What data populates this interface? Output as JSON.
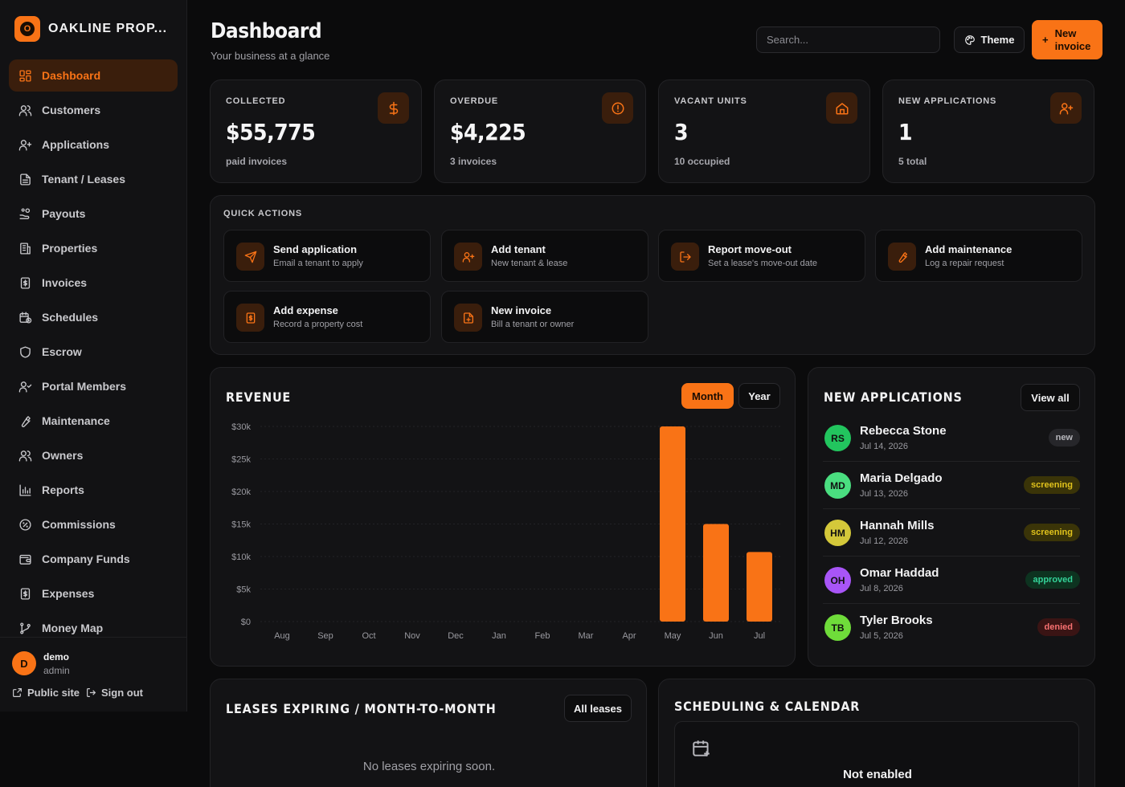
{
  "brand": {
    "logo_letter": "O",
    "name": "OAKLINE PROP..."
  },
  "nav": [
    {
      "label": "Dashboard",
      "icon": "grid-icon",
      "active": true
    },
    {
      "label": "Customers",
      "icon": "users-icon"
    },
    {
      "label": "Applications",
      "icon": "user-plus-icon"
    },
    {
      "label": "Tenant / Leases",
      "icon": "file-icon"
    },
    {
      "label": "Payouts",
      "icon": "hand-coins-icon"
    },
    {
      "label": "Properties",
      "icon": "building-icon"
    },
    {
      "label": "Invoices",
      "icon": "receipt-icon"
    },
    {
      "label": "Schedules",
      "icon": "calendar-clock-icon"
    },
    {
      "label": "Escrow",
      "icon": "shield-icon"
    },
    {
      "label": "Portal Members",
      "icon": "user-check-icon"
    },
    {
      "label": "Maintenance",
      "icon": "wrench-icon"
    },
    {
      "label": "Owners",
      "icon": "users-icon"
    },
    {
      "label": "Reports",
      "icon": "bar-chart-icon"
    },
    {
      "label": "Commissions",
      "icon": "percent-icon"
    },
    {
      "label": "Company Funds",
      "icon": "wallet-icon"
    },
    {
      "label": "Expenses",
      "icon": "receipt-icon"
    },
    {
      "label": "Money Map",
      "icon": "git-branch-icon"
    }
  ],
  "user": {
    "initial": "D",
    "name": "demo",
    "role": "admin",
    "public_site": "Public site",
    "sign_out": "Sign out"
  },
  "header": {
    "title": "Dashboard",
    "subtitle": "Your business at a glance",
    "search_placeholder": "Search...",
    "theme_label": "Theme",
    "new_invoice_line1": "New",
    "new_invoice_line2": "invoice"
  },
  "stats": [
    {
      "label": "COLLECTED",
      "value": "$55,775",
      "note": "paid invoices",
      "icon": "dollar-icon"
    },
    {
      "label": "OVERDUE",
      "value": "$4,225",
      "note": "3 invoices",
      "icon": "alert-circle-icon"
    },
    {
      "label": "VACANT UNITS",
      "value": "3",
      "note": "10 occupied",
      "icon": "home-icon"
    },
    {
      "label": "NEW APPLICATIONS",
      "value": "1",
      "note": "5 total",
      "icon": "user-plus-icon"
    }
  ],
  "quick_actions": {
    "title": "QUICK ACTIONS",
    "items": [
      {
        "name": "Send application",
        "desc": "Email a tenant to apply",
        "icon": "send-icon"
      },
      {
        "name": "Add tenant",
        "desc": "New tenant & lease",
        "icon": "user-plus-icon"
      },
      {
        "name": "Report move-out",
        "desc": "Set a lease's move-out date",
        "icon": "log-out-icon"
      },
      {
        "name": "Add maintenance",
        "desc": "Log a repair request",
        "icon": "wrench-icon"
      },
      {
        "name": "Add expense",
        "desc": "Record a property cost",
        "icon": "receipt-icon"
      },
      {
        "name": "New invoice",
        "desc": "Bill a tenant or owner",
        "icon": "file-plus-icon"
      }
    ]
  },
  "revenue": {
    "title": "REVENUE",
    "month_label": "Month",
    "year_label": "Year"
  },
  "chart_data": {
    "type": "bar",
    "categories": [
      "Aug",
      "Sep",
      "Oct",
      "Nov",
      "Dec",
      "Jan",
      "Feb",
      "Mar",
      "Apr",
      "May",
      "Jun",
      "Jul"
    ],
    "values": [
      0,
      0,
      0,
      0,
      0,
      0,
      0,
      0,
      0,
      30000,
      15000,
      10700
    ],
    "y_ticks": [
      "$0",
      "$5k",
      "$10k",
      "$15k",
      "$20k",
      "$25k",
      "$30k"
    ],
    "ylim": [
      0,
      30000
    ],
    "color": "#f97316",
    "grid": true
  },
  "applications": {
    "title": "NEW APPLICATIONS",
    "view_all": "View all",
    "items": [
      {
        "initials": "RS",
        "name": "Rebecca Stone",
        "date": "Jul 14, 2026",
        "status": "new",
        "avatar_color": "#22c55e"
      },
      {
        "initials": "MD",
        "name": "Maria Delgado",
        "date": "Jul 13, 2026",
        "status": "screening",
        "avatar_color": "#4ade80"
      },
      {
        "initials": "HM",
        "name": "Hannah Mills",
        "date": "Jul 12, 2026",
        "status": "screening",
        "avatar_color": "#d4c83a"
      },
      {
        "initials": "OH",
        "name": "Omar Haddad",
        "date": "Jul 8, 2026",
        "status": "approved",
        "avatar_color": "#a855f7"
      },
      {
        "initials": "TB",
        "name": "Tyler Brooks",
        "date": "Jul 5, 2026",
        "status": "denied",
        "avatar_color": "#6fdc3a"
      }
    ]
  },
  "leases": {
    "title": "LEASES EXPIRING / MONTH-TO-MONTH",
    "button": "All leases",
    "empty": "No leases expiring soon."
  },
  "scheduling": {
    "title": "SCHEDULING & CALENDAR",
    "state": "Not enabled"
  }
}
